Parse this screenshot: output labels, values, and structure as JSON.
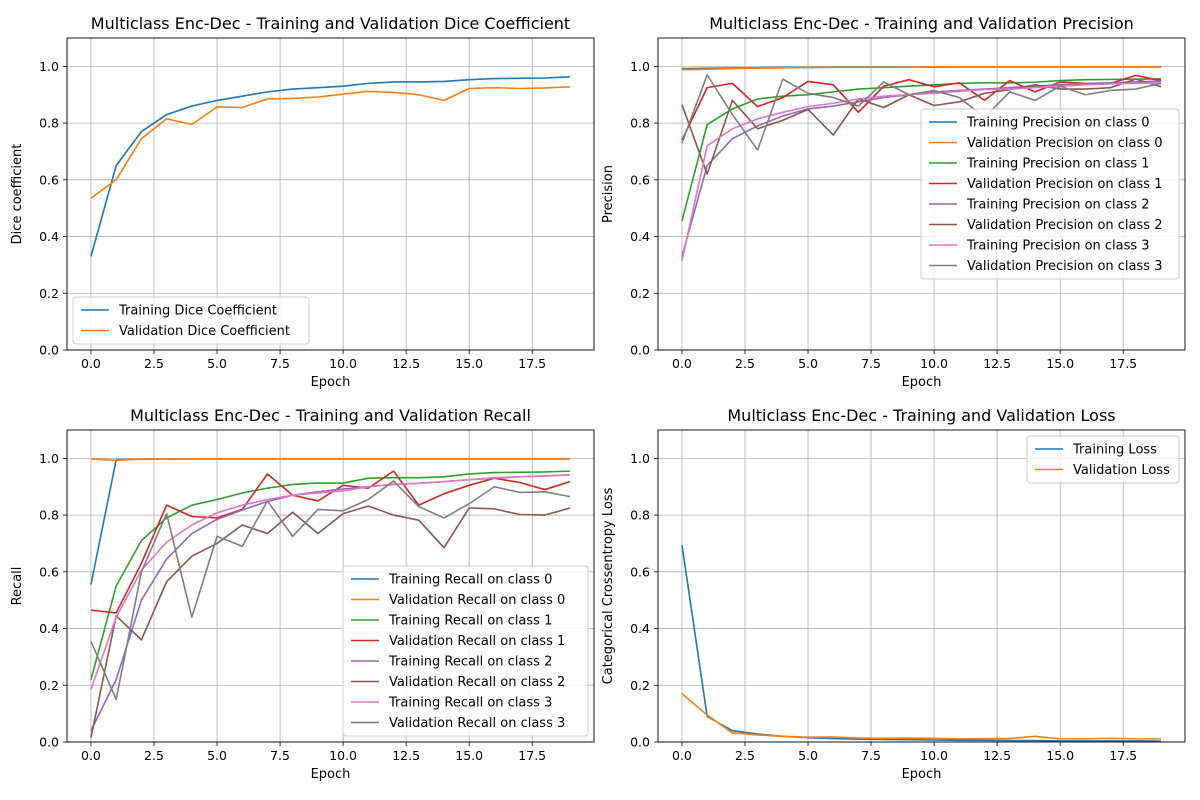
{
  "chart_data": [
    {
      "type": "line",
      "title": "Multiclass Enc-Dec - Training and Validation Dice Coefficient",
      "xlabel": "Epoch",
      "ylabel": "Dice coefficient",
      "xlim": [
        -0.95,
        19.95
      ],
      "ylim": [
        0,
        1.1
      ],
      "xticks": [
        0,
        2.5,
        5,
        7.5,
        10,
        12.5,
        15,
        17.5
      ],
      "xtick_labels": [
        "0.0",
        "2.5",
        "5.0",
        "7.5",
        "10.0",
        "12.5",
        "15.0",
        "17.5"
      ],
      "yticks": [
        0,
        0.2,
        0.4,
        0.6,
        0.8,
        1.0
      ],
      "ytick_labels": [
        "0.0",
        "0.2",
        "0.4",
        "0.6",
        "0.8",
        "1.0"
      ],
      "grid": true,
      "legend_position": "lower-left",
      "x": [
        0,
        1,
        2,
        3,
        4,
        5,
        6,
        7,
        8,
        9,
        10,
        11,
        12,
        13,
        14,
        15,
        16,
        17,
        18,
        19
      ],
      "series": [
        {
          "name": "Training Dice Coefficient",
          "color": "#1f77b4",
          "values": [
            0.33,
            0.65,
            0.77,
            0.83,
            0.86,
            0.88,
            0.895,
            0.91,
            0.92,
            0.925,
            0.93,
            0.94,
            0.945,
            0.945,
            0.947,
            0.953,
            0.957,
            0.958,
            0.959,
            0.963
          ]
        },
        {
          "name": "Validation Dice Coefficient",
          "color": "#ff7f0e",
          "values": [
            0.535,
            0.6,
            0.745,
            0.815,
            0.795,
            0.857,
            0.855,
            0.885,
            0.887,
            0.892,
            0.902,
            0.912,
            0.908,
            0.9,
            0.88,
            0.922,
            0.925,
            0.922,
            0.924,
            0.928
          ]
        }
      ]
    },
    {
      "type": "line",
      "title": "Multiclass Enc-Dec - Training and Validation Precision",
      "xlabel": "Epoch",
      "ylabel": "Precision",
      "xlim": [
        -0.95,
        19.95
      ],
      "ylim": [
        0,
        1.1
      ],
      "xticks": [
        0,
        2.5,
        5,
        7.5,
        10,
        12.5,
        15,
        17.5
      ],
      "xtick_labels": [
        "0.0",
        "2.5",
        "5.0",
        "7.5",
        "10.0",
        "12.5",
        "15.0",
        "17.5"
      ],
      "yticks": [
        0,
        0.2,
        0.4,
        0.6,
        0.8,
        1.0
      ],
      "ytick_labels": [
        "0.0",
        "0.2",
        "0.4",
        "0.6",
        "0.8",
        "1.0"
      ],
      "grid": true,
      "legend_position": "center-right",
      "x": [
        0,
        1,
        2,
        3,
        4,
        5,
        6,
        7,
        8,
        9,
        10,
        11,
        12,
        13,
        14,
        15,
        16,
        17,
        18,
        19
      ],
      "series": [
        {
          "name": "Training Precision on class 0",
          "color": "#1f77b4",
          "values": [
            0.992,
            0.993,
            0.994,
            0.995,
            0.996,
            0.996,
            0.997,
            0.997,
            0.997,
            0.997,
            0.997,
            0.998,
            0.998,
            0.998,
            0.998,
            0.998,
            0.998,
            0.998,
            0.998,
            0.998
          ]
        },
        {
          "name": "Validation Precision on class 0",
          "color": "#ff7f0e",
          "values": [
            0.988,
            0.99,
            0.992,
            0.994,
            0.995,
            0.996,
            0.997,
            0.997,
            0.997,
            0.997,
            0.998,
            0.998,
            0.998,
            0.998,
            0.998,
            0.998,
            0.998,
            0.998,
            0.998,
            0.998
          ]
        },
        {
          "name": "Training Precision on class 1",
          "color": "#2ca02c",
          "values": [
            0.455,
            0.795,
            0.85,
            0.885,
            0.895,
            0.9,
            0.91,
            0.92,
            0.925,
            0.93,
            0.935,
            0.94,
            0.942,
            0.942,
            0.944,
            0.95,
            0.953,
            0.954,
            0.955,
            0.956
          ]
        },
        {
          "name": "Validation Precision on class 1",
          "color": "#d62728",
          "values": [
            0.74,
            0.925,
            0.94,
            0.858,
            0.89,
            0.947,
            0.935,
            0.838,
            0.93,
            0.953,
            0.928,
            0.942,
            0.88,
            0.95,
            0.91,
            0.945,
            0.94,
            0.94,
            0.968,
            0.95
          ]
        },
        {
          "name": "Training Precision on class 2",
          "color": "#9467bd",
          "values": [
            0.33,
            0.65,
            0.745,
            0.79,
            0.825,
            0.85,
            0.86,
            0.875,
            0.89,
            0.9,
            0.91,
            0.915,
            0.92,
            0.925,
            0.93,
            0.935,
            0.94,
            0.942,
            0.945,
            0.948
          ]
        },
        {
          "name": "Validation Precision on class 2",
          "color": "#8c564b",
          "values": [
            0.865,
            0.62,
            0.88,
            0.78,
            0.81,
            0.848,
            0.758,
            0.885,
            0.855,
            0.9,
            0.862,
            0.875,
            0.905,
            0.918,
            0.935,
            0.92,
            0.92,
            0.925,
            0.955,
            0.928
          ]
        },
        {
          "name": "Training Precision on class 3",
          "color": "#e377c2",
          "values": [
            0.315,
            0.72,
            0.78,
            0.815,
            0.838,
            0.858,
            0.87,
            0.885,
            0.895,
            0.9,
            0.905,
            0.912,
            0.918,
            0.92,
            0.925,
            0.93,
            0.935,
            0.938,
            0.94,
            0.942
          ]
        },
        {
          "name": "Validation Precision on class 3",
          "color": "#7f7f7f",
          "values": [
            0.73,
            0.97,
            0.83,
            0.705,
            0.955,
            0.905,
            0.89,
            0.86,
            0.945,
            0.9,
            0.915,
            0.89,
            0.82,
            0.91,
            0.88,
            0.93,
            0.9,
            0.915,
            0.92,
            0.94
          ]
        }
      ]
    },
    {
      "type": "line",
      "title": "Multiclass Enc-Dec - Training and Validation Recall",
      "xlabel": "Epoch",
      "ylabel": "Recall",
      "xlim": [
        -0.95,
        19.95
      ],
      "ylim": [
        0,
        1.1
      ],
      "xticks": [
        0,
        2.5,
        5,
        7.5,
        10,
        12.5,
        15,
        17.5
      ],
      "xtick_labels": [
        "0.0",
        "2.5",
        "5.0",
        "7.5",
        "10.0",
        "12.5",
        "15.0",
        "17.5"
      ],
      "yticks": [
        0,
        0.2,
        0.4,
        0.6,
        0.8,
        1.0
      ],
      "ytick_labels": [
        "0.0",
        "0.2",
        "0.4",
        "0.6",
        "0.8",
        "1.0"
      ],
      "grid": true,
      "legend_position": "lower-right",
      "x": [
        0,
        1,
        2,
        3,
        4,
        5,
        6,
        7,
        8,
        9,
        10,
        11,
        12,
        13,
        14,
        15,
        16,
        17,
        18,
        19
      ],
      "series": [
        {
          "name": "Training Recall on class 0",
          "color": "#1f77b4",
          "values": [
            0.555,
            0.995,
            0.997,
            0.997,
            0.998,
            0.998,
            0.998,
            0.998,
            0.998,
            0.998,
            0.998,
            0.998,
            0.998,
            0.998,
            0.998,
            0.998,
            0.998,
            0.998,
            0.998,
            0.998
          ]
        },
        {
          "name": "Validation Recall on class 0",
          "color": "#ff7f0e",
          "values": [
            0.998,
            0.993,
            0.998,
            0.997,
            0.998,
            0.998,
            0.998,
            0.998,
            0.998,
            0.998,
            0.998,
            0.998,
            0.998,
            0.998,
            0.998,
            0.998,
            0.998,
            0.998,
            0.998,
            0.998
          ]
        },
        {
          "name": "Training Recall on class 1",
          "color": "#2ca02c",
          "values": [
            0.22,
            0.55,
            0.71,
            0.79,
            0.835,
            0.855,
            0.878,
            0.895,
            0.908,
            0.913,
            0.913,
            0.93,
            0.932,
            0.932,
            0.935,
            0.945,
            0.95,
            0.951,
            0.952,
            0.955
          ]
        },
        {
          "name": "Validation Recall on class 1",
          "color": "#d62728",
          "values": [
            0.465,
            0.455,
            0.63,
            0.835,
            0.795,
            0.79,
            0.82,
            0.945,
            0.87,
            0.85,
            0.905,
            0.895,
            0.955,
            0.835,
            0.875,
            0.905,
            0.93,
            0.915,
            0.89,
            0.918
          ]
        },
        {
          "name": "Training Recall on class 2",
          "color": "#9467bd",
          "values": [
            0.04,
            0.22,
            0.5,
            0.645,
            0.735,
            0.785,
            0.818,
            0.848,
            0.87,
            0.882,
            0.892,
            0.9,
            0.908,
            0.912,
            0.918,
            0.925,
            0.93,
            0.935,
            0.938,
            0.942
          ]
        },
        {
          "name": "Validation Recall on class 2",
          "color": "#8c564b",
          "values": [
            0.015,
            0.445,
            0.36,
            0.565,
            0.655,
            0.7,
            0.765,
            0.735,
            0.81,
            0.735,
            0.805,
            0.832,
            0.8,
            0.782,
            0.685,
            0.825,
            0.822,
            0.802,
            0.8,
            0.825
          ]
        },
        {
          "name": "Training Recall on class 3",
          "color": "#e377c2",
          "values": [
            0.185,
            0.44,
            0.605,
            0.705,
            0.765,
            0.808,
            0.835,
            0.855,
            0.87,
            0.878,
            0.885,
            0.9,
            0.908,
            0.912,
            0.918,
            0.925,
            0.932,
            0.935,
            0.938,
            0.942
          ]
        },
        {
          "name": "Validation Recall on class 3",
          "color": "#7f7f7f",
          "values": [
            0.355,
            0.15,
            0.6,
            0.805,
            0.44,
            0.725,
            0.69,
            0.85,
            0.725,
            0.82,
            0.815,
            0.855,
            0.92,
            0.83,
            0.79,
            0.84,
            0.9,
            0.88,
            0.882,
            0.865
          ]
        }
      ]
    },
    {
      "type": "line",
      "title": "Multiclass Enc-Dec - Training and Validation Loss",
      "xlabel": "Epoch",
      "ylabel": "Categorical Crossentropy Loss",
      "xlim": [
        -0.95,
        19.95
      ],
      "ylim": [
        0,
        1.1
      ],
      "xticks": [
        0,
        2.5,
        5,
        7.5,
        10,
        12.5,
        15,
        17.5
      ],
      "xtick_labels": [
        "0.0",
        "2.5",
        "5.0",
        "7.5",
        "10.0",
        "12.5",
        "15.0",
        "17.5"
      ],
      "yticks": [
        0,
        0.2,
        0.4,
        0.6,
        0.8,
        1.0
      ],
      "ytick_labels": [
        "0.0",
        "0.2",
        "0.4",
        "0.6",
        "0.8",
        "1.0"
      ],
      "grid": true,
      "legend_position": "upper-right",
      "x": [
        0,
        1,
        2,
        3,
        4,
        5,
        6,
        7,
        8,
        9,
        10,
        11,
        12,
        13,
        14,
        15,
        16,
        17,
        18,
        19
      ],
      "series": [
        {
          "name": "Training Loss",
          "color": "#1f77b4",
          "values": [
            0.695,
            0.09,
            0.04,
            0.028,
            0.02,
            0.015,
            0.012,
            0.01,
            0.009,
            0.008,
            0.007,
            0.006,
            0.006,
            0.005,
            0.005,
            0.004,
            0.004,
            0.004,
            0.004,
            0.003
          ]
        },
        {
          "name": "Validation Loss",
          "color": "#ff7f0e",
          "values": [
            0.17,
            0.095,
            0.032,
            0.025,
            0.02,
            0.017,
            0.018,
            0.014,
            0.013,
            0.014,
            0.013,
            0.011,
            0.012,
            0.012,
            0.02,
            0.011,
            0.011,
            0.013,
            0.011,
            0.011
          ]
        }
      ]
    }
  ]
}
